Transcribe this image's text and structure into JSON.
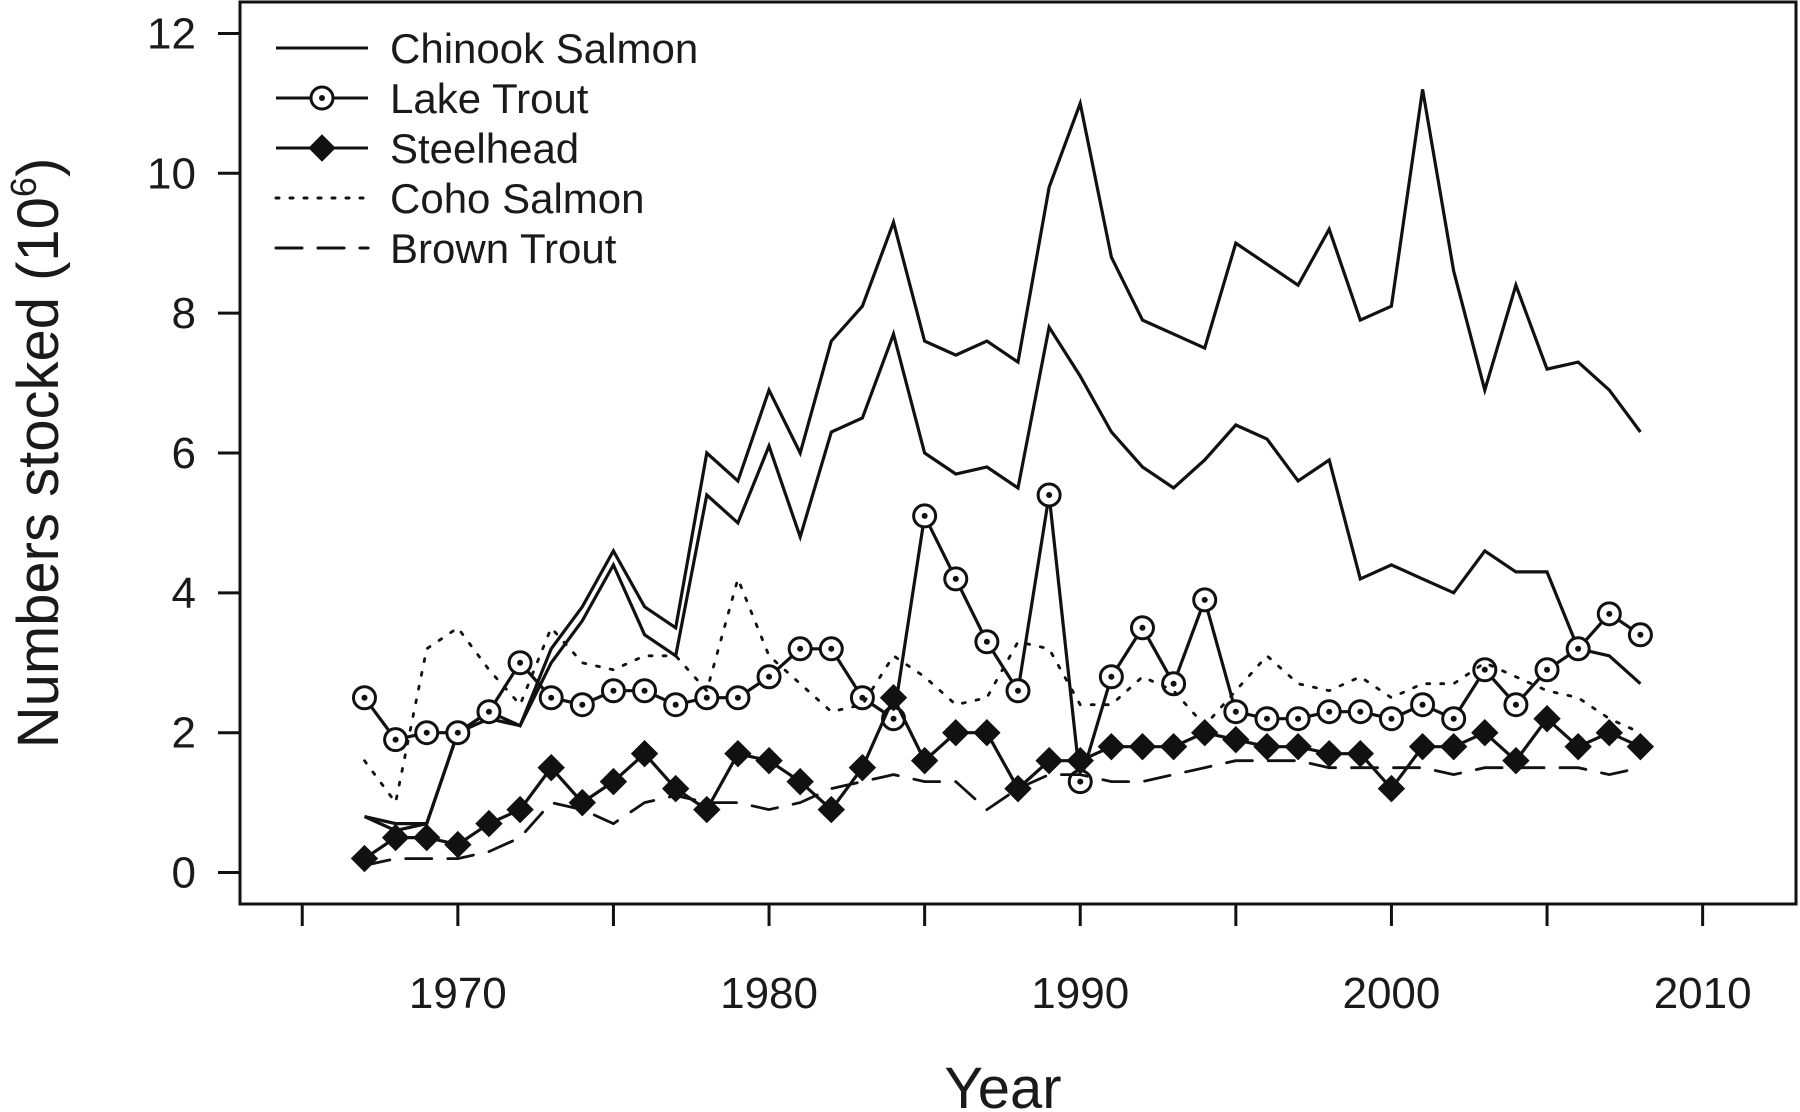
{
  "chart_data": {
    "type": "line",
    "title": "",
    "xlabel": "Year",
    "ylabel": "Numbers stocked (10",
    "ylabel_sup": "6",
    "ylabel_close": ")",
    "xlim": [
      1963,
      2013
    ],
    "ylim": [
      -0.45,
      12.45
    ],
    "x_ticks": [
      1970,
      1980,
      1990,
      2000,
      2010
    ],
    "y_ticks": [
      0,
      2,
      4,
      6,
      8,
      10,
      12
    ],
    "x_minor_ticks": [
      1965,
      1975,
      1985,
      1995,
      2005
    ],
    "grid": false,
    "legend_position": "top-left",
    "x": [
      1967,
      1968,
      1969,
      1970,
      1971,
      1972,
      1973,
      1974,
      1975,
      1976,
      1977,
      1978,
      1979,
      1980,
      1981,
      1982,
      1983,
      1984,
      1985,
      1986,
      1987,
      1988,
      1989,
      1990,
      1991,
      1992,
      1993,
      1994,
      1995,
      1996,
      1997,
      1998,
      1999,
      2000,
      2001,
      2002,
      2003,
      2004,
      2005,
      2006,
      2007,
      2008
    ],
    "series": [
      {
        "name": "Chinook Salmon",
        "style": "solid",
        "marker": "none",
        "values": [
          0.8,
          0.7,
          0.7,
          2.0,
          2.3,
          2.1,
          3.2,
          3.8,
          4.6,
          3.8,
          3.5,
          6.0,
          5.6,
          6.9,
          6.0,
          7.6,
          8.1,
          9.3,
          7.6,
          7.4,
          7.6,
          7.3,
          9.8,
          11.0,
          8.8,
          7.9,
          7.7,
          7.5,
          9.0,
          8.7,
          8.4,
          9.2,
          7.9,
          8.1,
          11.2,
          8.6,
          6.9,
          8.4,
          7.2,
          7.3,
          6.9,
          6.3
        ]
      },
      {
        "name": "Chinook Salmon",
        "style": "solid",
        "marker": "none",
        "values": [
          0.8,
          0.6,
          0.7,
          2.0,
          2.2,
          2.1,
          3.0,
          3.6,
          4.4,
          3.4,
          3.1,
          5.4,
          5.0,
          6.1,
          4.8,
          6.3,
          6.5,
          7.7,
          6.0,
          5.7,
          5.8,
          5.5,
          7.8,
          7.1,
          6.3,
          5.8,
          5.5,
          5.9,
          6.4,
          6.2,
          5.6,
          5.9,
          4.2,
          4.4,
          4.2,
          4.0,
          4.6,
          4.3,
          4.3,
          3.2,
          3.1,
          2.7
        ]
      },
      {
        "name": "Lake Trout",
        "style": "solid",
        "marker": "open-circle",
        "values": [
          2.5,
          1.9,
          2.0,
          2.0,
          2.3,
          3.0,
          2.5,
          2.4,
          2.6,
          2.6,
          2.4,
          2.5,
          2.5,
          2.8,
          3.2,
          3.2,
          2.5,
          2.2,
          5.1,
          4.2,
          3.3,
          2.6,
          5.4,
          1.3,
          2.8,
          3.5,
          2.7,
          3.9,
          2.3,
          2.2,
          2.2,
          2.3,
          2.3,
          2.2,
          2.4,
          2.2,
          2.9,
          2.4,
          2.9,
          3.2,
          3.7,
          3.4
        ]
      },
      {
        "name": "Steelhead",
        "style": "solid",
        "marker": "filled-diamond",
        "values": [
          0.2,
          0.5,
          0.5,
          0.4,
          0.7,
          0.9,
          1.5,
          1.0,
          1.3,
          1.7,
          1.2,
          0.9,
          1.7,
          1.6,
          1.3,
          0.9,
          1.5,
          2.5,
          1.6,
          2.0,
          2.0,
          1.2,
          1.6,
          1.6,
          1.8,
          1.8,
          1.8,
          2.0,
          1.9,
          1.8,
          1.8,
          1.7,
          1.7,
          1.2,
          1.8,
          1.8,
          2.0,
          1.6,
          2.2,
          1.8,
          2.0,
          1.8
        ]
      },
      {
        "name": "Coho Salmon",
        "style": "dotted",
        "marker": "none",
        "values": [
          1.6,
          1.0,
          3.2,
          3.5,
          2.9,
          2.4,
          3.5,
          3.0,
          2.9,
          3.1,
          3.1,
          2.6,
          4.2,
          3.1,
          2.7,
          2.3,
          2.4,
          3.1,
          2.8,
          2.4,
          2.5,
          3.3,
          3.2,
          2.4,
          2.4,
          2.8,
          2.6,
          2.1,
          2.6,
          3.1,
          2.7,
          2.6,
          2.8,
          2.5,
          2.7,
          2.7,
          3.0,
          2.8,
          2.6,
          2.5,
          2.2,
          2.0
        ]
      },
      {
        "name": "Brown Trout",
        "style": "dashed",
        "marker": "none",
        "values": [
          0.1,
          0.2,
          0.2,
          0.2,
          0.3,
          0.5,
          1.0,
          0.9,
          0.7,
          1.0,
          1.1,
          1.0,
          1.0,
          0.9,
          1.0,
          1.2,
          1.3,
          1.4,
          1.3,
          1.3,
          0.9,
          1.2,
          1.4,
          1.4,
          1.3,
          1.3,
          1.4,
          1.5,
          1.6,
          1.6,
          1.6,
          1.5,
          1.5,
          1.5,
          1.5,
          1.4,
          1.5,
          1.5,
          1.5,
          1.5,
          1.4,
          1.5
        ]
      }
    ],
    "legend": [
      {
        "label": "Chinook Salmon",
        "style": "solid",
        "marker": "none"
      },
      {
        "label": "Lake Trout",
        "style": "solid",
        "marker": "open-circle"
      },
      {
        "label": "Steelhead",
        "style": "solid",
        "marker": "filled-diamond"
      },
      {
        "label": "Coho Salmon",
        "style": "dotted",
        "marker": "none"
      },
      {
        "label": "Brown Trout",
        "style": "dashed",
        "marker": "none"
      }
    ],
    "colors": {
      "line": "#111111",
      "background": "#ffffff"
    }
  }
}
